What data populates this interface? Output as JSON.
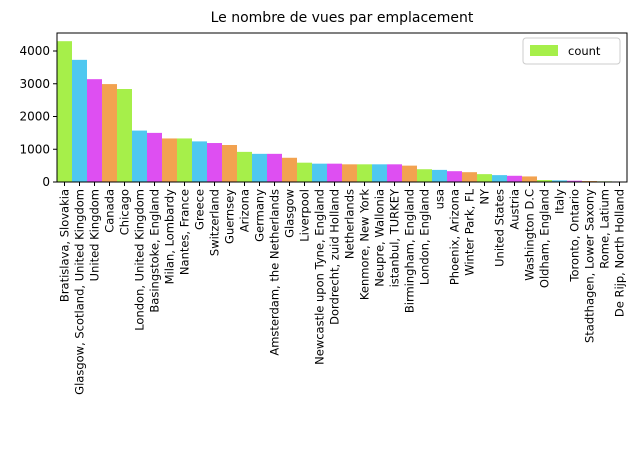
{
  "chart_data": {
    "type": "bar",
    "title": "Le nombre de vues par emplacement",
    "xlabel": "",
    "ylabel": "",
    "ylim": [
      0,
      4550
    ],
    "yticks": [
      0,
      1000,
      2000,
      3000,
      4000
    ],
    "grid": false,
    "legend": {
      "position": "top-right",
      "entries": [
        "count"
      ]
    },
    "bar_colors": [
      "#a6ef4a",
      "#4fc8f0",
      "#de4ff2",
      "#f2a250"
    ],
    "legend_color": "#a6ef4a",
    "categories": [
      "Bratislava, Slovakia",
      "Glasgow, Scotland, United Kingdom",
      "United Kingdom",
      "Canada",
      "Chicago",
      "London, United Kingdom",
      "Basingstoke, England",
      "Milan, Lombardy",
      "Nantes, France",
      "Greece",
      "Switzerland",
      "Guernsey",
      "Arizona",
      "Germany",
      "Amsterdam, the Netherlands",
      "Glasgow",
      "Liverpool",
      "Newcastle upon Tyne, England",
      "Dordrecht, zuid Holland",
      "Netherlands",
      "Kenmore, New York",
      "Neupre, Wallonia",
      "istanbul, TURKEY",
      "Birmingham, England",
      "London, England",
      "usa",
      "Phoenix, Arizona",
      "Winter Park, FL",
      "NY",
      "United States",
      "Austria",
      "Washington D.C",
      "Oldham, England",
      "Italy",
      "Toronto, Ontario",
      "Stadthagen, Lower Saxony",
      "Rome, Latium",
      "De Rijp, North Holland"
    ],
    "series": [
      {
        "name": "count",
        "values": [
          4300,
          3730,
          3140,
          2990,
          2840,
          1570,
          1500,
          1330,
          1330,
          1240,
          1190,
          1130,
          920,
          860,
          860,
          740,
          590,
          560,
          560,
          540,
          540,
          540,
          540,
          500,
          390,
          370,
          330,
          300,
          240,
          210,
          190,
          170,
          60,
          50,
          40,
          30,
          20,
          10
        ]
      }
    ]
  }
}
